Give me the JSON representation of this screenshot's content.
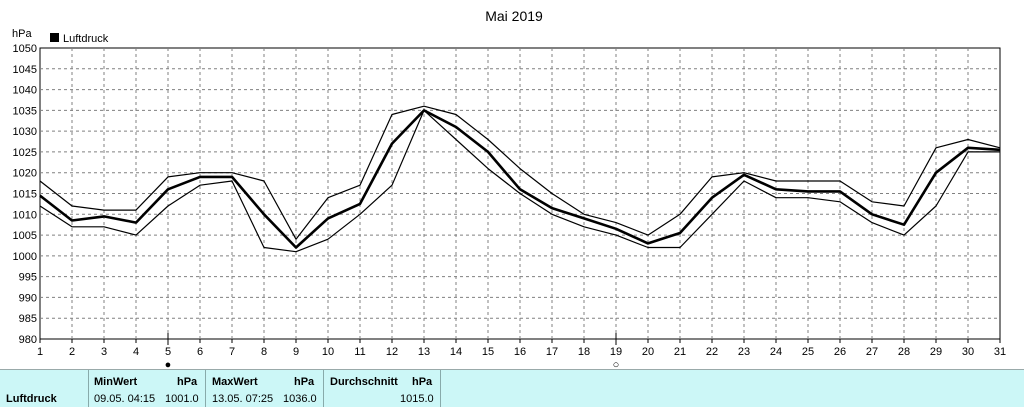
{
  "chart_data": {
    "type": "line",
    "title": "Mai 2019",
    "ylabel": "hPa",
    "legend": "Luftdruck",
    "legend_position": "top-left",
    "grid": true,
    "ylim": [
      980,
      1050
    ],
    "y_ticks": [
      980,
      985,
      990,
      995,
      1000,
      1005,
      1010,
      1015,
      1020,
      1025,
      1030,
      1035,
      1040,
      1045,
      1050
    ],
    "x": [
      1,
      2,
      3,
      4,
      5,
      6,
      7,
      8,
      9,
      10,
      11,
      12,
      13,
      14,
      15,
      16,
      17,
      18,
      19,
      20,
      21,
      22,
      23,
      24,
      25,
      26,
      27,
      28,
      29,
      30,
      31
    ],
    "series": [
      {
        "name": "Luftdruck",
        "values": [
          1014.5,
          1008.5,
          1009.5,
          1008,
          1016,
          1019,
          1019,
          1010,
          1002,
          1009,
          1012.5,
          1027,
          1035,
          1031,
          1025,
          1016,
          1011.5,
          1009,
          1006.5,
          1003,
          1005.5,
          1014,
          1019.5,
          1016,
          1015.5,
          1015.5,
          1010,
          1007.5,
          1020,
          1026,
          1025.5
        ]
      },
      {
        "values": [
          1018,
          1012,
          1011,
          1011,
          1019,
          1020,
          1020,
          1018,
          1004,
          1014,
          1017,
          1034,
          1036,
          1034,
          1028,
          1021,
          1015,
          1010,
          1008,
          1005,
          1010,
          1019,
          1020,
          1018,
          1018,
          1018,
          1013,
          1012,
          1026,
          1028,
          1026
        ]
      },
      {
        "values": [
          1012,
          1007,
          1007,
          1005,
          1012,
          1017,
          1018,
          1002,
          1001,
          1004,
          1010,
          1017,
          1035,
          1028,
          1021,
          1015,
          1010,
          1007,
          1005,
          1002,
          1002,
          1010,
          1018,
          1014,
          1014,
          1013,
          1008,
          1005,
          1012,
          1025,
          1025
        ]
      }
    ],
    "markers": [
      {
        "day": 5,
        "symbol": "●"
      },
      {
        "day": 19,
        "symbol": "○"
      }
    ]
  },
  "stats": {
    "label": "Luftdruck",
    "min_header": "MinWert",
    "max_header": "MaxWert",
    "avg_header": "Durchschnitt",
    "unit": "hPa",
    "min_time": "09.05.  04:15",
    "min_value": "1001.0",
    "max_time": "13.05.  07:25",
    "max_value": "1036.0",
    "avg_value": "1015.0"
  },
  "colors": {
    "line": "#000000",
    "grid": "#808080",
    "stats_bg": "#ccf7f7"
  }
}
